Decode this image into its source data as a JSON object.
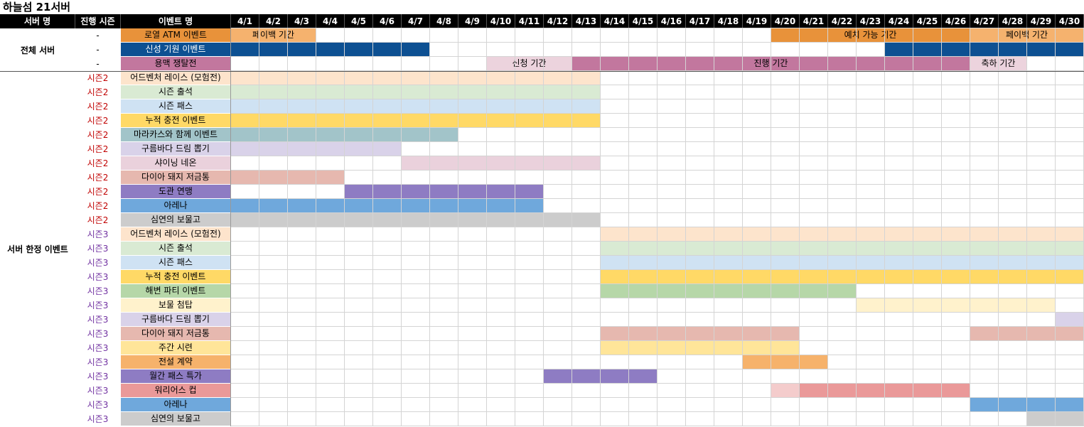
{
  "title": "하늘섬 21서버",
  "headers": {
    "server": "서버 명",
    "season": "진행 시즌",
    "event": "이벤트 명"
  },
  "days": [
    "4/1",
    "4/2",
    "4/3",
    "4/4",
    "4/5",
    "4/6",
    "4/7",
    "4/8",
    "4/9",
    "4/10",
    "4/11",
    "4/12",
    "4/13",
    "4/14",
    "4/15",
    "4/16",
    "4/17",
    "4/18",
    "4/19",
    "4/20",
    "4/21",
    "4/22",
    "4/23",
    "4/24",
    "4/25",
    "4/26",
    "4/27",
    "4/28",
    "4/29",
    "4/30"
  ],
  "colors": {
    "season2": "#c00000",
    "season3": "#7030a0"
  },
  "groups": [
    {
      "label": "전체 서버",
      "start": 0,
      "count": 3
    },
    {
      "label": "서버 한정 이벤트",
      "start": 3,
      "count": 25
    }
  ],
  "rows": [
    {
      "season": "-",
      "seasonColor": "#000000",
      "name": "로열 ATM 이벤트",
      "nameBg": "#e8923a",
      "nameColor": "#000000",
      "bars": [
        {
          "s": 1,
          "e": 3,
          "color": "#f5b26e",
          "label": "페이백 기간"
        },
        {
          "s": 20,
          "e": 26,
          "color": "#e8923a",
          "label": "예치 가능 기간"
        },
        {
          "s": 27,
          "e": 30,
          "color": "#f5b26e",
          "label": "페이백 기간"
        }
      ]
    },
    {
      "season": "-",
      "seasonColor": "#000000",
      "name": "신성 기원 이벤트",
      "nameBg": "#0d5092",
      "nameColor": "#ffffff",
      "bars": [
        {
          "s": 1,
          "e": 7,
          "color": "#0d5092",
          "label": ""
        },
        {
          "s": 24,
          "e": 30,
          "color": "#0d5092",
          "label": ""
        }
      ]
    },
    {
      "season": "-",
      "seasonColor": "#000000",
      "name": "용맥 쟁탈전",
      "nameBg": "#c2779e",
      "nameColor": "#000000",
      "bars": [
        {
          "s": 10,
          "e": 12,
          "color": "#ecd3dd",
          "label": "신청 기간"
        },
        {
          "s": 13,
          "e": 26,
          "color": "#c2779e",
          "label": "진행 기간"
        },
        {
          "s": 27,
          "e": 28,
          "color": "#ecd3dd",
          "label": "축하 기간"
        }
      ]
    },
    {
      "season": "시즌2",
      "seasonColor": "#c00000",
      "name": "어드벤처 레이스 (모험전)",
      "nameBg": "#fde4cc",
      "nameColor": "#000000",
      "bars": [
        {
          "s": 1,
          "e": 13,
          "color": "#fde4cc",
          "label": ""
        }
      ]
    },
    {
      "season": "시즌2",
      "seasonColor": "#c00000",
      "name": "시즌 출석",
      "nameBg": "#d9ead3",
      "nameColor": "#000000",
      "bars": [
        {
          "s": 1,
          "e": 13,
          "color": "#d9ead3",
          "label": ""
        }
      ]
    },
    {
      "season": "시즌2",
      "seasonColor": "#c00000",
      "name": "시즌 패스",
      "nameBg": "#cfe2f3",
      "nameColor": "#000000",
      "bars": [
        {
          "s": 1,
          "e": 13,
          "color": "#cfe2f3",
          "label": ""
        }
      ]
    },
    {
      "season": "시즌2",
      "seasonColor": "#c00000",
      "name": "누적 충전 이벤트",
      "nameBg": "#ffd966",
      "nameColor": "#000000",
      "bars": [
        {
          "s": 1,
          "e": 13,
          "color": "#ffd966",
          "label": ""
        }
      ]
    },
    {
      "season": "시즌2",
      "seasonColor": "#c00000",
      "name": "마라카스와 함께 이벤트",
      "nameBg": "#a2c4c9",
      "nameColor": "#000000",
      "bars": [
        {
          "s": 1,
          "e": 8,
          "color": "#a2c4c9",
          "label": ""
        }
      ]
    },
    {
      "season": "시즌2",
      "seasonColor": "#c00000",
      "name": "구름바다 드림 뽑기",
      "nameBg": "#d9d2e9",
      "nameColor": "#000000",
      "bars": [
        {
          "s": 1,
          "e": 6,
          "color": "#d9d2e9",
          "label": ""
        }
      ]
    },
    {
      "season": "시즌2",
      "seasonColor": "#c00000",
      "name": "샤이닝 네온",
      "nameBg": "#ead1dc",
      "nameColor": "#000000",
      "bars": [
        {
          "s": 7,
          "e": 13,
          "color": "#ead1dc",
          "label": ""
        }
      ]
    },
    {
      "season": "시즌2",
      "seasonColor": "#c00000",
      "name": "다이아 돼지 저금통",
      "nameBg": "#e6b8af",
      "nameColor": "#000000",
      "bars": [
        {
          "s": 1,
          "e": 4,
          "color": "#e6b8af",
          "label": ""
        }
      ]
    },
    {
      "season": "시즌2",
      "seasonColor": "#c00000",
      "name": "도관 연맹",
      "nameBg": "#8e7cc3",
      "nameColor": "#000000",
      "bars": [
        {
          "s": 5,
          "e": 11,
          "color": "#8e7cc3",
          "label": ""
        }
      ]
    },
    {
      "season": "시즌2",
      "seasonColor": "#c00000",
      "name": "아레나",
      "nameBg": "#6fa8dc",
      "nameColor": "#000000",
      "bars": [
        {
          "s": 1,
          "e": 11,
          "color": "#6fa8dc",
          "label": ""
        }
      ]
    },
    {
      "season": "시즌2",
      "seasonColor": "#c00000",
      "name": "심연의 보물고",
      "nameBg": "#cccccc",
      "nameColor": "#000000",
      "bars": [
        {
          "s": 1,
          "e": 13,
          "color": "#cccccc",
          "label": ""
        }
      ]
    },
    {
      "season": "시즌3",
      "seasonColor": "#7030a0",
      "name": "어드벤처 레이스 (모험전)",
      "nameBg": "#fde4cc",
      "nameColor": "#000000",
      "bars": [
        {
          "s": 14,
          "e": 30,
          "color": "#fde4cc",
          "label": ""
        }
      ]
    },
    {
      "season": "시즌3",
      "seasonColor": "#7030a0",
      "name": "시즌 출석",
      "nameBg": "#d9ead3",
      "nameColor": "#000000",
      "bars": [
        {
          "s": 14,
          "e": 30,
          "color": "#d9ead3",
          "label": ""
        }
      ]
    },
    {
      "season": "시즌3",
      "seasonColor": "#7030a0",
      "name": "시즌 패스",
      "nameBg": "#cfe2f3",
      "nameColor": "#000000",
      "bars": [
        {
          "s": 14,
          "e": 30,
          "color": "#cfe2f3",
          "label": ""
        }
      ]
    },
    {
      "season": "시즌3",
      "seasonColor": "#7030a0",
      "name": "누적 충전 이벤트",
      "nameBg": "#ffd966",
      "nameColor": "#000000",
      "bars": [
        {
          "s": 14,
          "e": 30,
          "color": "#ffd966",
          "label": ""
        }
      ]
    },
    {
      "season": "시즌3",
      "seasonColor": "#7030a0",
      "name": "해변 파티 이벤트",
      "nameBg": "#b6d7a8",
      "nameColor": "#000000",
      "bars": [
        {
          "s": 14,
          "e": 22,
          "color": "#b6d7a8",
          "label": ""
        }
      ]
    },
    {
      "season": "시즌3",
      "seasonColor": "#7030a0",
      "name": "보물 첨탑",
      "nameBg": "#fff2cc",
      "nameColor": "#000000",
      "bars": [
        {
          "s": 23,
          "e": 29,
          "color": "#fff2cc",
          "label": ""
        }
      ]
    },
    {
      "season": "시즌3",
      "seasonColor": "#7030a0",
      "name": "구름바다 드림 뽑기",
      "nameBg": "#d9d2e9",
      "nameColor": "#000000",
      "bars": [
        {
          "s": 30,
          "e": 30,
          "color": "#d9d2e9",
          "label": ""
        }
      ]
    },
    {
      "season": "시즌3",
      "seasonColor": "#7030a0",
      "name": "다이아 돼지 저금통",
      "nameBg": "#e6b8af",
      "nameColor": "#000000",
      "bars": [
        {
          "s": 14,
          "e": 20,
          "color": "#e6b8af",
          "label": ""
        },
        {
          "s": 27,
          "e": 30,
          "color": "#e6b8af",
          "label": ""
        }
      ]
    },
    {
      "season": "시즌3",
      "seasonColor": "#7030a0",
      "name": "주간 시련",
      "nameBg": "#ffe599",
      "nameColor": "#000000",
      "bars": [
        {
          "s": 14,
          "e": 20,
          "color": "#ffe599",
          "label": ""
        }
      ]
    },
    {
      "season": "시즌3",
      "seasonColor": "#7030a0",
      "name": "전설 계약",
      "nameBg": "#f6b26b",
      "nameColor": "#000000",
      "bars": [
        {
          "s": 19,
          "e": 21,
          "color": "#f6b26b",
          "label": ""
        }
      ]
    },
    {
      "season": "시즌3",
      "seasonColor": "#7030a0",
      "name": "월간 패스 특가",
      "nameBg": "#8e7cc3",
      "nameColor": "#000000",
      "bars": [
        {
          "s": 12,
          "e": 15,
          "color": "#8e7cc3",
          "label": ""
        }
      ]
    },
    {
      "season": "시즌3",
      "seasonColor": "#7030a0",
      "name": "워리어스 컵",
      "nameBg": "#ea9999",
      "nameColor": "#000000",
      "bars": [
        {
          "s": 20,
          "e": 20,
          "color": "#f4cccc",
          "label": ""
        },
        {
          "s": 21,
          "e": 26,
          "color": "#ea9999",
          "label": ""
        }
      ]
    },
    {
      "season": "시즌3",
      "seasonColor": "#7030a0",
      "name": "아레나",
      "nameBg": "#6fa8dc",
      "nameColor": "#000000",
      "bars": [
        {
          "s": 27,
          "e": 30,
          "color": "#6fa8dc",
          "label": ""
        }
      ]
    },
    {
      "season": "시즌3",
      "seasonColor": "#7030a0",
      "name": "심연의 보물고",
      "nameBg": "#cccccc",
      "nameColor": "#000000",
      "bars": [
        {
          "s": 29,
          "e": 30,
          "color": "#cccccc",
          "label": ""
        }
      ]
    }
  ]
}
